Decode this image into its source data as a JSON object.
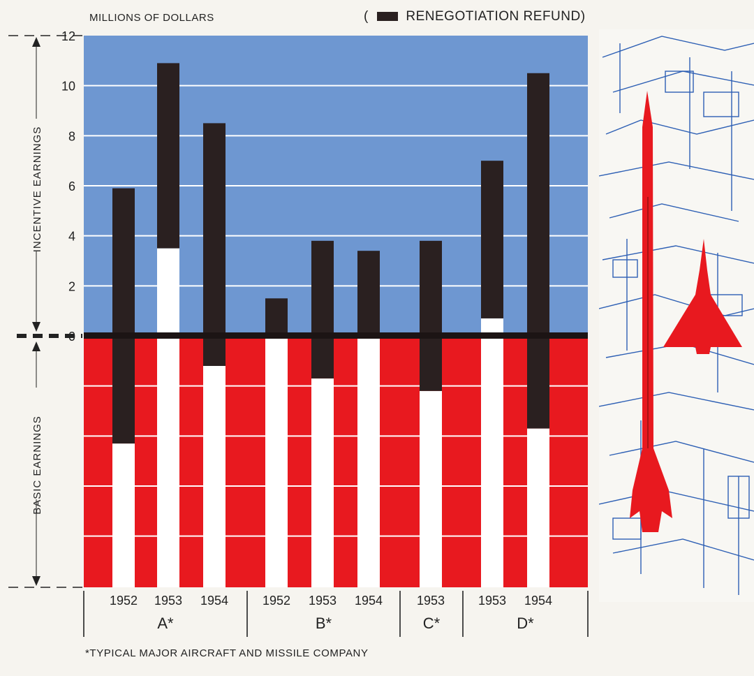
{
  "chart_data": {
    "type": "bar",
    "ylabel": "MILLIONS OF DOLLARS",
    "legend": {
      "prefix": "(",
      "label": "RENEGOTIATION REFUND)",
      "color": "#2a2020",
      "placement": "top-right"
    },
    "ylim": [
      0,
      12
    ],
    "yticks": [
      "0",
      "2",
      "4",
      "6",
      "8",
      "10",
      "12"
    ],
    "range_labels": {
      "upper": "INCENTIVE EARNINGS",
      "lower": "BASIC EARNINGS"
    },
    "groups": [
      {
        "label": "A*",
        "categories": [
          "1952",
          "1953",
          "1954"
        ]
      },
      {
        "label": "B*",
        "categories": [
          "1952",
          "1953",
          "1954"
        ]
      },
      {
        "label": "C*",
        "categories": [
          "1953"
        ]
      },
      {
        "label": "D*",
        "categories": [
          "1953",
          "1954"
        ]
      }
    ],
    "bars": [
      {
        "group": "A*",
        "year": "1952",
        "incentive_earnings": 0,
        "refund_top": 5.9,
        "refund_bottom": -4.3
      },
      {
        "group": "A*",
        "year": "1953",
        "incentive_earnings": 3.5,
        "refund_top": 10.9,
        "refund_bottom": 3.5
      },
      {
        "group": "A*",
        "year": "1954",
        "incentive_earnings": 0,
        "refund_top": 8.5,
        "refund_bottom": -1.2
      },
      {
        "group": "B*",
        "year": "1952",
        "incentive_earnings": 0,
        "refund_top": 1.5,
        "refund_bottom": 0
      },
      {
        "group": "B*",
        "year": "1953",
        "incentive_earnings": 0,
        "refund_top": 3.8,
        "refund_bottom": -1.7
      },
      {
        "group": "B*",
        "year": "1954",
        "incentive_earnings": 0,
        "refund_top": 3.4,
        "refund_bottom": -0.1
      },
      {
        "group": "C*",
        "year": "1953",
        "incentive_earnings": 0,
        "refund_top": 3.8,
        "refund_bottom": -2.2
      },
      {
        "group": "D*",
        "year": "1953",
        "incentive_earnings": 0.7,
        "refund_top": 7.0,
        "refund_bottom": 0.7
      },
      {
        "group": "D*",
        "year": "1954",
        "incentive_earnings": 0,
        "refund_top": 10.5,
        "refund_bottom": -3.7
      }
    ],
    "colors": {
      "incentive_area": "#6e97d1",
      "basic_area": "#e8191f",
      "refund": "#2a2020",
      "earnings": "#ffffff"
    },
    "footnote": "*TYPICAL MAJOR AIRCRAFT AND MISSILE COMPANY"
  }
}
